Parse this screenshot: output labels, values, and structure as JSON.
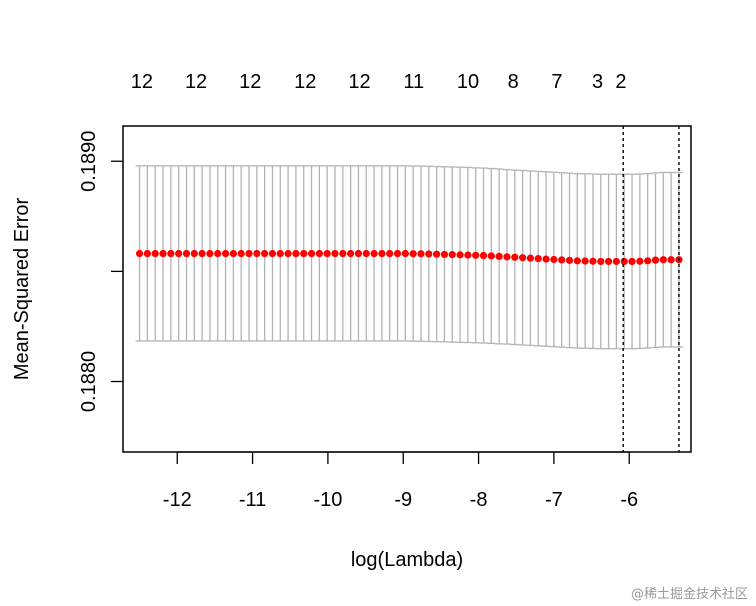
{
  "chart_data": {
    "type": "scatter",
    "xlabel": "log(Lambda)",
    "ylabel": "Mean-Squared Error",
    "xlim": [
      -12.72,
      -5.18
    ],
    "ylim": [
      0.18768,
      0.18916
    ],
    "x_ticks": [
      -12,
      -11,
      -10,
      -9,
      -8,
      -7,
      -6
    ],
    "y_ticks": [
      0.188,
      0.189
    ],
    "y_tick_labels": [
      "0.1880",
      "0.1890"
    ],
    "top_axis": {
      "positions": [
        -12.47,
        -11.75,
        -11.03,
        -10.3,
        -9.58,
        -8.86,
        -8.14,
        -7.54,
        -6.96,
        -6.42,
        -6.11
      ],
      "labels": [
        "12",
        "12",
        "12",
        "12",
        "12",
        "11",
        "10",
        "8",
        "7",
        "3",
        "2"
      ]
    },
    "vlines": [
      -6.08,
      -5.34
    ],
    "point_color": "#ff0000",
    "errorbar_color": "#b3b3b3",
    "series": [
      {
        "x_start": -12.5,
        "x_end": -5.34,
        "mean": [
          0.188581,
          0.188581,
          0.188581,
          0.188581,
          0.188581,
          0.188581,
          0.188581,
          0.188581,
          0.188581,
          0.188581,
          0.188581,
          0.188581,
          0.188581,
          0.188581,
          0.188581,
          0.188581,
          0.188581,
          0.188581,
          0.188581,
          0.188581,
          0.188581,
          0.188581,
          0.188581,
          0.188581,
          0.188581,
          0.188581,
          0.188581,
          0.188581,
          0.188581,
          0.188581,
          0.188581,
          0.188581,
          0.188581,
          0.188581,
          0.188581,
          0.18858,
          0.18858,
          0.188579,
          0.188578,
          0.188577,
          0.188576,
          0.188575,
          0.188574,
          0.188573,
          0.188572,
          0.18857,
          0.188568,
          0.188566,
          0.188564,
          0.188562,
          0.18856,
          0.188558,
          0.188556,
          0.188554,
          0.188552,
          0.18855,
          0.188548,
          0.188547,
          0.188546,
          0.188545,
          0.188545,
          0.188545,
          0.188545,
          0.188545,
          0.188546,
          0.188548,
          0.188551,
          0.188553,
          0.188553,
          0.188553
        ],
        "upper": [
          0.188979,
          0.188979,
          0.188979,
          0.188979,
          0.188979,
          0.188979,
          0.188979,
          0.188979,
          0.188979,
          0.188979,
          0.188979,
          0.188979,
          0.188979,
          0.188979,
          0.188979,
          0.188979,
          0.188979,
          0.188979,
          0.188979,
          0.188979,
          0.188979,
          0.188979,
          0.188979,
          0.188979,
          0.188979,
          0.188979,
          0.188979,
          0.188979,
          0.188979,
          0.188979,
          0.188979,
          0.188979,
          0.188979,
          0.188979,
          0.188979,
          0.188978,
          0.188978,
          0.188977,
          0.188976,
          0.188975,
          0.188974,
          0.188973,
          0.188972,
          0.18897,
          0.188969,
          0.188967,
          0.188965,
          0.188962,
          0.18896,
          0.188958,
          0.188956,
          0.188954,
          0.188952,
          0.18895,
          0.188948,
          0.188946,
          0.188944,
          0.188943,
          0.188942,
          0.188941,
          0.188941,
          0.188941,
          0.188941,
          0.188941,
          0.188942,
          0.188944,
          0.188947,
          0.188949,
          0.188949,
          0.188949
        ],
        "lower": [
          0.188184,
          0.188184,
          0.188184,
          0.188184,
          0.188184,
          0.188184,
          0.188184,
          0.188184,
          0.188184,
          0.188184,
          0.188184,
          0.188184,
          0.188184,
          0.188184,
          0.188184,
          0.188184,
          0.188184,
          0.188184,
          0.188184,
          0.188184,
          0.188184,
          0.188184,
          0.188184,
          0.188184,
          0.188184,
          0.188184,
          0.188184,
          0.188184,
          0.188184,
          0.188184,
          0.188184,
          0.188184,
          0.188184,
          0.188184,
          0.188184,
          0.188183,
          0.188183,
          0.188182,
          0.188181,
          0.18818,
          0.188179,
          0.188178,
          0.188177,
          0.188176,
          0.188175,
          0.188173,
          0.188171,
          0.18817,
          0.188168,
          0.188166,
          0.188164,
          0.188162,
          0.18816,
          0.188158,
          0.188156,
          0.188154,
          0.188152,
          0.188151,
          0.18815,
          0.188149,
          0.188149,
          0.188149,
          0.188149,
          0.188149,
          0.18815,
          0.188152,
          0.188155,
          0.188157,
          0.188157,
          0.188157
        ]
      }
    ]
  },
  "watermark": "@稀土掘金技术社区"
}
